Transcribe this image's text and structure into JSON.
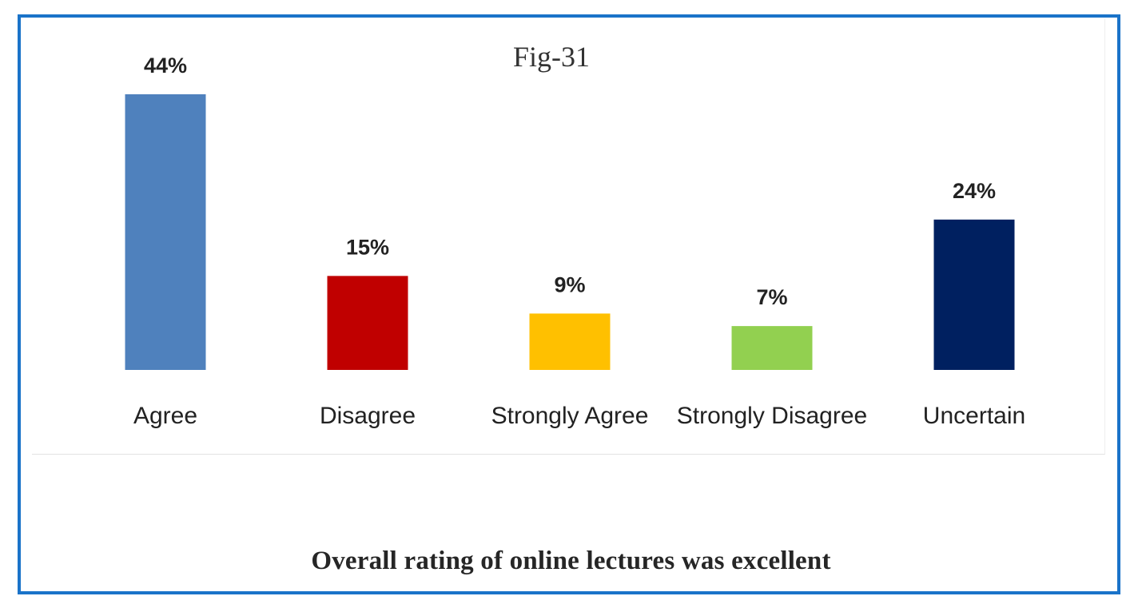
{
  "figure": {
    "label": "Fig-31",
    "caption": "Overall rating of online lectures was excellent"
  },
  "chart_data": {
    "type": "bar",
    "categories": [
      "Agree",
      "Disagree",
      "Strongly Agree",
      "Strongly Disagree",
      "Uncertain"
    ],
    "values": [
      44,
      15,
      9,
      7,
      24
    ],
    "data_labels": [
      "44%",
      "15%",
      "9%",
      "7%",
      "24%"
    ],
    "colors": [
      "#4f81bd",
      "#c00000",
      "#ffc000",
      "#92d050",
      "#002060"
    ],
    "title": "",
    "xlabel": "",
    "ylabel": "",
    "ylim": [
      0,
      44
    ],
    "grid": false,
    "legend": "none"
  }
}
